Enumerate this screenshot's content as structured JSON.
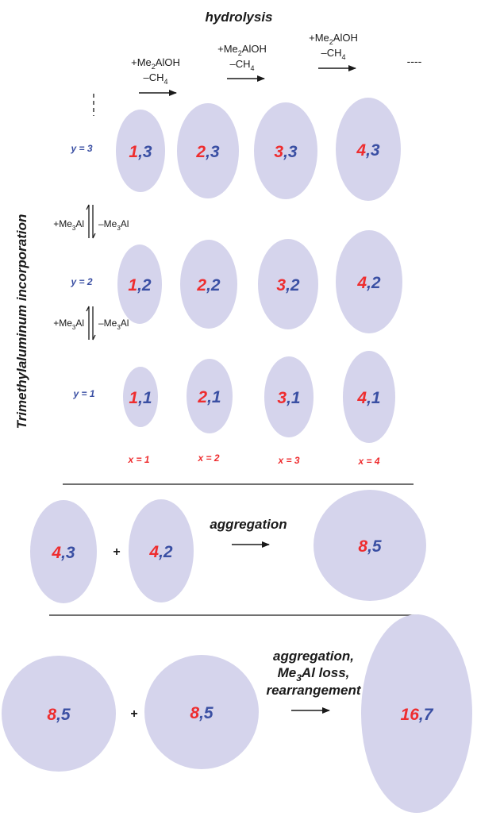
{
  "colors": {
    "blob": "#d5d4ec",
    "red": "#ee2d2f",
    "blue": "#3a4fa3",
    "ink": "#1a1a1a"
  },
  "header": {
    "title": "hydrolysis",
    "dashes_right": "----",
    "dashes_top": "- - -"
  },
  "steps": [
    {
      "reagent_base": "+Me",
      "reagent_sub": "2",
      "reagent_tail": "AlOH",
      "byproduct_base": "–CH",
      "byproduct_sub": "4"
    },
    {
      "reagent_base": "+Me",
      "reagent_sub": "2",
      "reagent_tail": "AlOH",
      "byproduct_base": "–CH",
      "byproduct_sub": "4"
    },
    {
      "reagent_base": "+Me",
      "reagent_sub": "2",
      "reagent_tail": "AlOH",
      "byproduct_base": "–CH",
      "byproduct_sub": "4"
    }
  ],
  "side": {
    "title": "Trimethylaluminum incorporation",
    "equilibria": [
      {
        "plus_base": "+Me",
        "plus_sub": "3",
        "plus_tail": "Al",
        "minus_base": "–Me",
        "minus_sub": "3",
        "minus_tail": "Al"
      },
      {
        "plus_base": "+Me",
        "plus_sub": "3",
        "plus_tail": "Al",
        "minus_base": "–Me",
        "minus_sub": "3",
        "minus_tail": "Al"
      }
    ]
  },
  "grid": {
    "y_labels": [
      "y = 3",
      "y = 2",
      "y = 1"
    ],
    "x_labels": [
      "x = 1",
      "x = 2",
      "x = 3",
      "x = 4"
    ],
    "rows": [
      [
        {
          "x": "1",
          "y": "3"
        },
        {
          "x": "2",
          "y": "3"
        },
        {
          "x": "3",
          "y": "3"
        },
        {
          "x": "4",
          "y": "3"
        }
      ],
      [
        {
          "x": "1",
          "y": "2"
        },
        {
          "x": "2",
          "y": "2"
        },
        {
          "x": "3",
          "y": "2"
        },
        {
          "x": "4",
          "y": "2"
        }
      ],
      [
        {
          "x": "1",
          "y": "1"
        },
        {
          "x": "2",
          "y": "1"
        },
        {
          "x": "3",
          "y": "1"
        },
        {
          "x": "4",
          "y": "1"
        }
      ]
    ]
  },
  "aggregation": {
    "a": {
      "x": "4",
      "y": "3"
    },
    "b": {
      "x": "4",
      "y": "2"
    },
    "plus": "+",
    "label": "aggregation",
    "product": {
      "x": "8",
      "y": "5"
    }
  },
  "rearrangement": {
    "a": {
      "x": "8",
      "y": "5"
    },
    "b": {
      "x": "8",
      "y": "5"
    },
    "plus": "+",
    "label_line1": "aggregation,",
    "label_line2_base": "Me",
    "label_line2_sub": "3",
    "label_line2_tail": "Al loss,",
    "label_line3": "rearrangement",
    "product": {
      "x": "16",
      "y": "7"
    }
  },
  "comma": ","
}
